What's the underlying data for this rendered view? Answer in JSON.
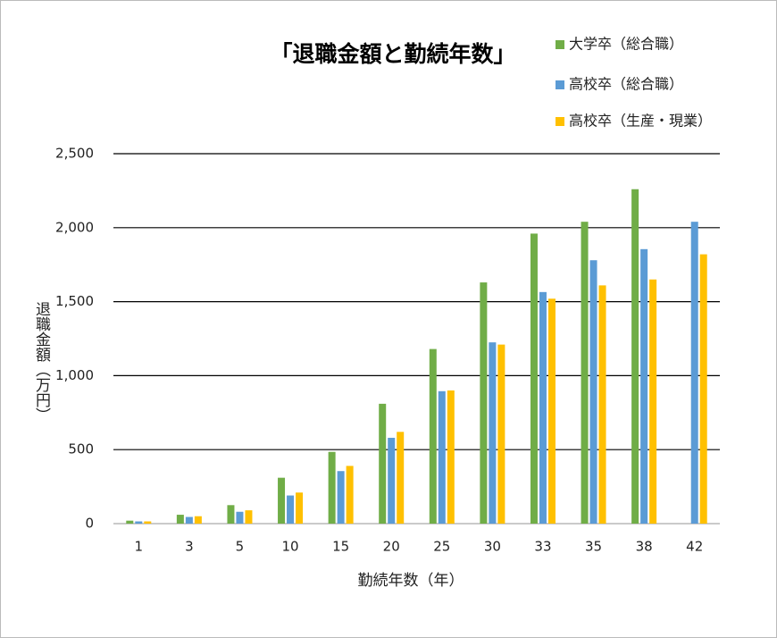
{
  "chart_data": {
    "type": "bar",
    "title": "「退職金額と勤続年数」",
    "x_label": "勤続年数（年）",
    "y_label": "退職金額（万円）",
    "categories": [
      "1",
      "3",
      "5",
      "10",
      "15",
      "20",
      "25",
      "30",
      "33",
      "35",
      "38",
      "42"
    ],
    "series": [
      {
        "name": "大学卒（総合職）",
        "color": "#70ad47",
        "values": [
          20,
          60,
          125,
          310,
          485,
          810,
          1180,
          1630,
          1960,
          2040,
          2260,
          null
        ]
      },
      {
        "name": "高校卒（総合職）",
        "color": "#5b9bd5",
        "values": [
          15,
          45,
          80,
          190,
          355,
          580,
          895,
          1225,
          1565,
          1780,
          1855,
          2040
        ]
      },
      {
        "name": "高校卒（生産・現業）",
        "color": "#ffc000",
        "values": [
          15,
          50,
          90,
          210,
          390,
          620,
          900,
          1210,
          1520,
          1610,
          1650,
          1820
        ]
      }
    ],
    "ylim": [
      0,
      2500
    ],
    "yticks": [
      0,
      500,
      {
        "value": 1000,
        "label": "1,000"
      },
      {
        "value": 1500,
        "label": "1,500"
      },
      {
        "value": 2000,
        "label": "2,000"
      },
      {
        "value": 2500,
        "label": "2,500"
      }
    ],
    "grid": true
  }
}
